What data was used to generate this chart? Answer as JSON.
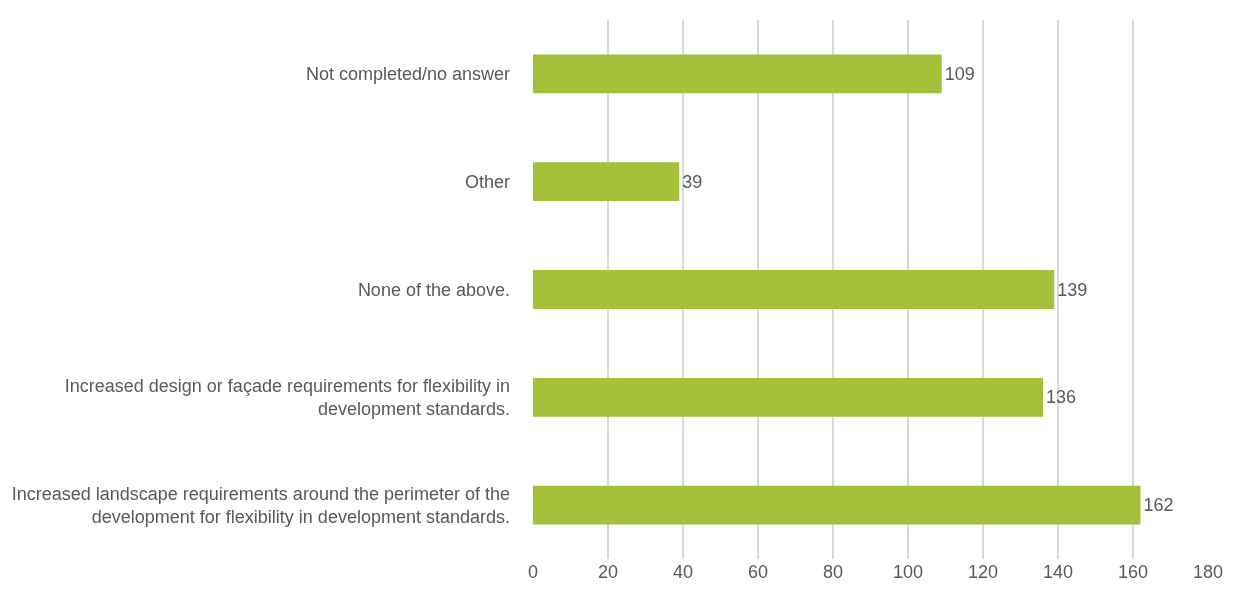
{
  "chart_data": {
    "type": "bar",
    "orientation": "horizontal",
    "categories": [
      "Not completed/no answer",
      "Other",
      "None of the above.",
      "Increased design or façade requirements for flexibility in development standards.",
      "Increased landscape requirements around the perimeter of the development for flexibility in development standards."
    ],
    "values": [
      109,
      39,
      139,
      136,
      162
    ],
    "color": "#a5c03a",
    "xlim": [
      0,
      180
    ],
    "xticks": [
      0,
      20,
      40,
      60,
      80,
      100,
      120,
      140,
      160,
      180
    ],
    "grid": "x",
    "data_labels": true,
    "legend": false
  }
}
